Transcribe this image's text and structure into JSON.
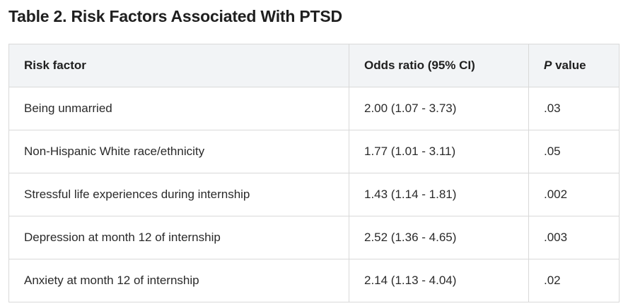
{
  "title": "Table 2. Risk Factors Associated With PTSD",
  "table": {
    "headers": {
      "risk_factor": "Risk factor",
      "odds_ratio": "Odds ratio (95% CI)",
      "p_value_italic": "P",
      "p_value_rest": " value"
    },
    "rows": [
      {
        "risk_factor": "Being unmarried",
        "odds_ratio": "2.00 (1.07 - 3.73)",
        "p_value": ".03"
      },
      {
        "risk_factor": "Non-Hispanic White race/ethnicity",
        "odds_ratio": "1.77 (1.01 - 3.11)",
        "p_value": ".05"
      },
      {
        "risk_factor": "Stressful life experiences during internship",
        "odds_ratio": "1.43 (1.14 - 1.81)",
        "p_value": ".002"
      },
      {
        "risk_factor": "Depression at month 12 of internship",
        "odds_ratio": "2.52 (1.36 - 4.65)",
        "p_value": ".003"
      },
      {
        "risk_factor": "Anxiety at month 12 of internship",
        "odds_ratio": "2.14 (1.13 - 4.04)",
        "p_value": ".02"
      }
    ]
  }
}
